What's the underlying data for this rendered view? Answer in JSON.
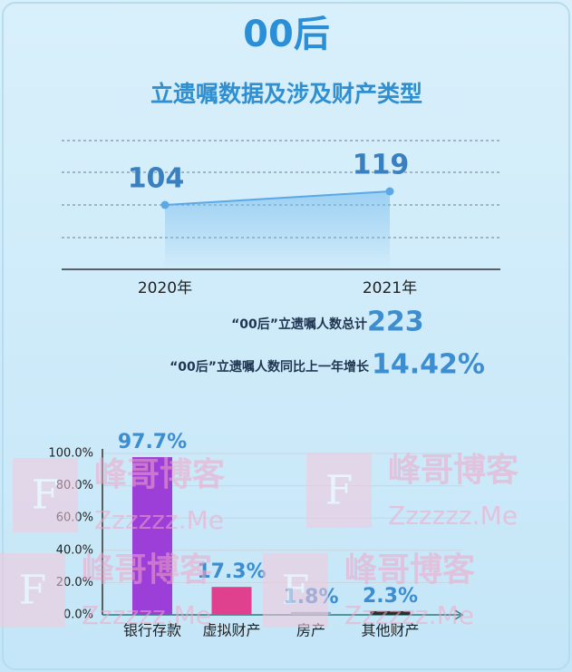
{
  "header": {
    "title": "00后",
    "subtitle": "立遗嘱数据及涉及财产类型"
  },
  "stats": [
    {
      "label": "“00后”立遗嘱人数总计",
      "value": "223"
    },
    {
      "label": "“00后”立遗嘱人数同比上一年增长",
      "value": "14.42%"
    }
  ],
  "watermark": {
    "mark": "F",
    "name": "峰哥博客",
    "site": "Zzzzzz.Me"
  },
  "chart_data": [
    {
      "type": "line",
      "categories": [
        "2020年",
        "2021年"
      ],
      "values": [
        104,
        119
      ],
      "color": "#5aa9e6",
      "grid": true
    },
    {
      "type": "bar",
      "categories": [
        "银行存款",
        "虚拟财产",
        "房产",
        "其他财产"
      ],
      "values": [
        97.7,
        17.3,
        1.8,
        2.3
      ],
      "value_labels": [
        "97.7%",
        "17.3%",
        "1.8%",
        "2.3%"
      ],
      "colors": [
        "#9c3fd8",
        "#e0418f",
        "#8fa6cc",
        "#2e2e2e"
      ],
      "ylim": [
        0,
        100
      ],
      "yticks": [
        {
          "value": 0,
          "label": "0.0%"
        },
        {
          "value": 20,
          "label": "20.0%"
        },
        {
          "value": 40,
          "label": "40.0%"
        },
        {
          "value": 60,
          "label": "60.0%"
        },
        {
          "value": 80,
          "label": "80.0%"
        },
        {
          "value": 100,
          "label": "100.0%"
        }
      ],
      "grid": true
    }
  ]
}
